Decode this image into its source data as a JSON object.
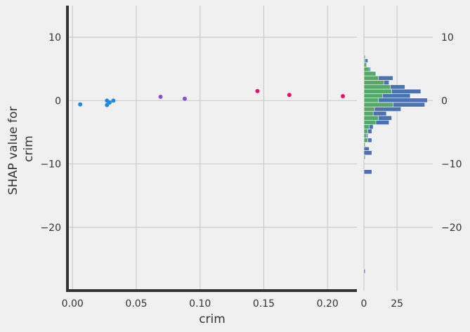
{
  "chart_data": [
    {
      "type": "scatter",
      "xlabel": "crim",
      "ylabel": [
        "SHAP value for",
        "crim"
      ],
      "xlim": [
        -0.004,
        0.223
      ],
      "ylim": [
        -30,
        15
      ],
      "xticks": [
        0.0,
        0.05,
        0.1,
        0.15,
        0.2
      ],
      "xtick_labels": [
        "0.00",
        "0.05",
        "0.10",
        "0.15",
        "0.20"
      ],
      "yticks": [
        10,
        0,
        -10,
        -20
      ],
      "ytick_labels": [
        "10",
        "0",
        "−10",
        "−20"
      ],
      "grid": true,
      "points": [
        {
          "x": 0.006,
          "y": -0.6,
          "color": "#1e88e5"
        },
        {
          "x": 0.027,
          "y": -0.7,
          "color": "#1e88e5"
        },
        {
          "x": 0.027,
          "y": 0.0,
          "color": "#1e88e5"
        },
        {
          "x": 0.029,
          "y": -0.3,
          "color": "#1e88e5"
        },
        {
          "x": 0.032,
          "y": 0.0,
          "color": "#1e88e5"
        },
        {
          "x": 0.069,
          "y": 0.6,
          "color": "#8a4fd6"
        },
        {
          "x": 0.088,
          "y": 0.3,
          "color": "#8a4fd6"
        },
        {
          "x": 0.145,
          "y": 1.5,
          "color": "#e8106a"
        },
        {
          "x": 0.17,
          "y": 0.9,
          "color": "#e8106a"
        },
        {
          "x": 0.212,
          "y": 0.7,
          "color": "#e8106a"
        }
      ]
    },
    {
      "type": "bar",
      "orientation": "horizontal",
      "xlim": [
        0,
        52
      ],
      "xticks": [
        0,
        25
      ],
      "xtick_labels": [
        "0",
        "25"
      ],
      "ylim": [
        -30,
        15
      ],
      "yticks": [
        10,
        0,
        -10,
        -20
      ],
      "ytick_labels": [
        "10",
        "0",
        "−10",
        "−20"
      ],
      "grid": true,
      "colors": {
        "blue": "#4c72b0",
        "green": "#55a868"
      },
      "series": [
        {
          "color_key": "blue",
          "bins": [
            {
              "y0": 6.0,
              "y1": 6.6,
              "value": 3
            },
            {
              "y0": 5.3,
              "y1": 6.0,
              "value": 1
            },
            {
              "y0": 4.6,
              "y1": 5.3,
              "value": 5
            },
            {
              "y0": 3.9,
              "y1": 4.6,
              "value": 8
            },
            {
              "y0": 3.2,
              "y1": 3.9,
              "value": 22
            },
            {
              "y0": 2.5,
              "y1": 3.2,
              "value": 19
            },
            {
              "y0": 1.8,
              "y1": 2.5,
              "value": 31
            },
            {
              "y0": 1.1,
              "y1": 1.8,
              "value": 43
            },
            {
              "y0": 0.4,
              "y1": 1.1,
              "value": 35
            },
            {
              "y0": -0.3,
              "y1": 0.4,
              "value": 48
            },
            {
              "y0": -1.0,
              "y1": -0.3,
              "value": 46
            },
            {
              "y0": -1.7,
              "y1": -1.0,
              "value": 28
            },
            {
              "y0": -2.4,
              "y1": -1.7,
              "value": 17
            },
            {
              "y0": -3.1,
              "y1": -2.4,
              "value": 21
            },
            {
              "y0": -3.8,
              "y1": -3.1,
              "value": 19
            },
            {
              "y0": -4.5,
              "y1": -3.8,
              "value": 7
            },
            {
              "y0": -5.2,
              "y1": -4.5,
              "value": 6
            },
            {
              "y0": -5.9,
              "y1": -5.2,
              "value": 3
            },
            {
              "y0": -6.6,
              "y1": -5.9,
              "value": 6
            },
            {
              "y0": -7.3,
              "y1": -6.6,
              "value": 1
            },
            {
              "y0": -7.9,
              "y1": -7.3,
              "value": 4
            },
            {
              "y0": -8.6,
              "y1": -7.9,
              "value": 6
            },
            {
              "y0": -9.3,
              "y1": -8.6,
              "value": 1
            },
            {
              "y0": -11.6,
              "y1": -10.9,
              "value": 6
            },
            {
              "y0": -27.3,
              "y1": -26.6,
              "value": 1
            }
          ]
        },
        {
          "color_key": "green",
          "bins": [
            {
              "y0": 6.6,
              "y1": 7.2,
              "value": 1
            },
            {
              "y0": 6.0,
              "y1": 6.6,
              "value": 1
            },
            {
              "y0": 5.3,
              "y1": 6.0,
              "value": 2
            },
            {
              "y0": 4.6,
              "y1": 5.3,
              "value": 4
            },
            {
              "y0": 3.9,
              "y1": 4.6,
              "value": 9
            },
            {
              "y0": 3.2,
              "y1": 3.9,
              "value": 11
            },
            {
              "y0": 2.5,
              "y1": 3.2,
              "value": 15
            },
            {
              "y0": 1.8,
              "y1": 2.5,
              "value": 20
            },
            {
              "y0": 1.1,
              "y1": 1.8,
              "value": 21
            },
            {
              "y0": 0.4,
              "y1": 1.1,
              "value": 14
            },
            {
              "y0": -0.3,
              "y1": 0.4,
              "value": 11
            },
            {
              "y0": -1.0,
              "y1": -0.3,
              "value": 22
            },
            {
              "y0": -1.7,
              "y1": -1.0,
              "value": 8
            },
            {
              "y0": -2.4,
              "y1": -1.7,
              "value": 7
            },
            {
              "y0": -3.1,
              "y1": -2.4,
              "value": 11
            },
            {
              "y0": -3.8,
              "y1": -3.1,
              "value": 9
            },
            {
              "y0": -4.5,
              "y1": -3.8,
              "value": 4
            },
            {
              "y0": -5.2,
              "y1": -4.5,
              "value": 3
            },
            {
              "y0": -5.9,
              "y1": -5.2,
              "value": 2
            },
            {
              "y0": -6.6,
              "y1": -5.9,
              "value": 3
            },
            {
              "y0": -7.3,
              "y1": -6.6,
              "value": 1
            },
            {
              "y0": -9.3,
              "y1": -8.6,
              "value": 1
            }
          ]
        }
      ]
    }
  ]
}
